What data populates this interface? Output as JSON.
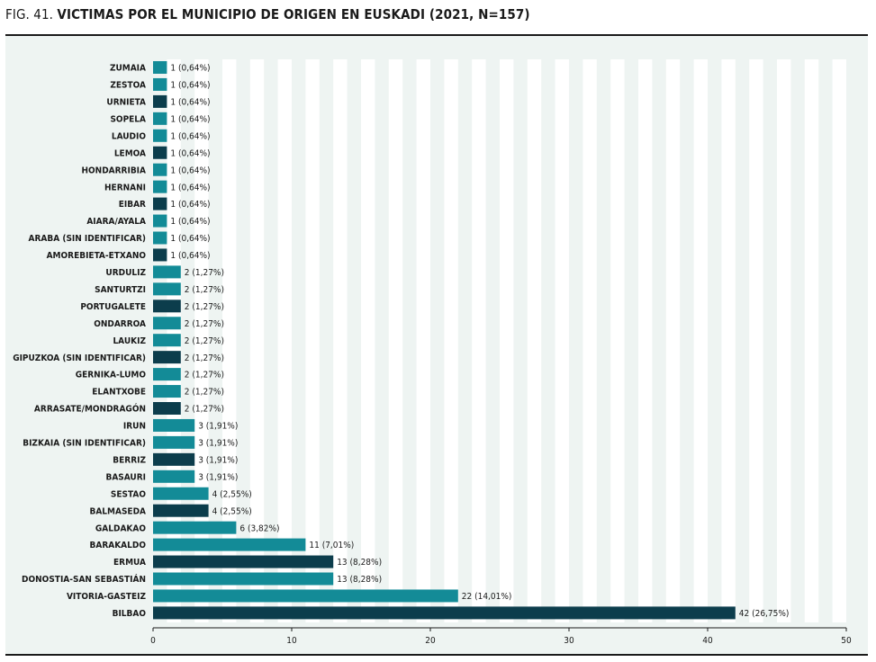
{
  "figure": {
    "number": "FIG. 41.",
    "title": "VICTIMAS POR EL MUNICIPIO DE ORIGEN EN EUSKADI (2021, N=157)"
  },
  "colors": {
    "panel_background": "#eef4f2",
    "teal_bar": "#138b97",
    "dark_bar": "#0c3d4c",
    "grid_stripe": "#ffffff"
  },
  "chart_data": {
    "type": "bar",
    "orientation": "horizontal",
    "title": "VICTIMAS POR EL MUNICIPIO DE ORIGEN EN EUSKADI (2021, N=157)",
    "xlim": [
      0,
      50
    ],
    "xticks": [
      0,
      10,
      20,
      30,
      40,
      50
    ],
    "grid": "vertical stripes",
    "categories": [
      "ZUMAIA",
      "ZESTOA",
      "URNIETA",
      "SOPELA",
      "LAUDIO",
      "LEMOA",
      "HONDARRIBIA",
      "HERNANI",
      "EIBAR",
      "AIARA/AYALA",
      "ARABA (SIN IDENTIFICAR)",
      "AMOREBIETA-ETXANO",
      "URDULIZ",
      "SANTURTZI",
      "PORTUGALETE",
      "ONDARROA",
      "LAUKIZ",
      "GIPUZKOA (SIN IDENTIFICAR)",
      "GERNIKA-LUMO",
      "ELANTXOBE",
      "ARRASATE/MONDRAGÓN",
      "IRUN",
      "BIZKAIA (SIN IDENTIFICAR)",
      "BERRIZ",
      "BASAURI",
      "SESTAO",
      "BALMASEDA",
      "GALDAKAO",
      "BARAKALDO",
      "ERMUA",
      "DONOSTIA-SAN SEBASTIÁN",
      "VITORIA-GASTEIZ",
      "BILBAO"
    ],
    "values": [
      1,
      1,
      1,
      1,
      1,
      1,
      1,
      1,
      1,
      1,
      1,
      1,
      2,
      2,
      2,
      2,
      2,
      2,
      2,
      2,
      2,
      3,
      3,
      3,
      3,
      4,
      4,
      6,
      11,
      13,
      13,
      22,
      42
    ],
    "data_labels": [
      "1 (0,64%)",
      "1 (0,64%)",
      "1 (0,64%)",
      "1 (0,64%)",
      "1 (0,64%)",
      "1 (0,64%)",
      "1 (0,64%)",
      "1 (0,64%)",
      "1 (0,64%)",
      "1 (0,64%)",
      "1 (0,64%)",
      "1 (0,64%)",
      "2 (1,27%)",
      "2 (1,27%)",
      "2 (1,27%)",
      "2 (1,27%)",
      "2 (1,27%)",
      "2 (1,27%)",
      "2 (1,27%)",
      "2 (1,27%)",
      "2 (1,27%)",
      "3 (1,91%)",
      "3 (1,91%)",
      "3 (1,91%)",
      "3 (1,91%)",
      "4 (2,55%)",
      "4 (2,55%)",
      "6 (3,82%)",
      "11 (7,01%)",
      "13 (8,28%)",
      "13 (8,28%)",
      "22 (14,01%)",
      "42 (26,75%)"
    ],
    "bar_colors": [
      "teal",
      "teal",
      "dark",
      "teal",
      "teal",
      "dark",
      "teal",
      "teal",
      "dark",
      "teal",
      "teal",
      "dark",
      "teal",
      "teal",
      "dark",
      "teal",
      "teal",
      "dark",
      "teal",
      "teal",
      "dark",
      "teal",
      "teal",
      "dark",
      "teal",
      "teal",
      "dark",
      "teal",
      "teal",
      "dark",
      "teal",
      "teal",
      "dark"
    ]
  }
}
